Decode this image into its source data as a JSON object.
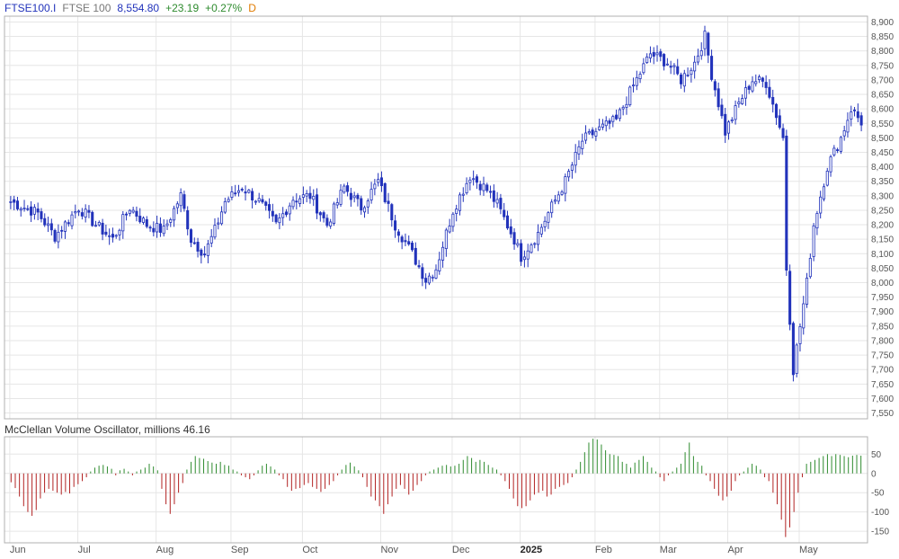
{
  "header": {
    "symbol": "FTSE100.I",
    "name": "FTSE 100",
    "last": "8,554.80",
    "change": "+23.19",
    "change_pct": "+0.27%",
    "interval": "D"
  },
  "oscillator": {
    "title": "McClellan Volume Oscillator, millions",
    "value": "46.16"
  },
  "colors": {
    "candle": "#2233bb",
    "positive": "#2e8b2e",
    "negative": "#b22222",
    "grid": "#e6e6e6",
    "axis": "#b0b0b0"
  },
  "chart_data": [
    {
      "type": "candlestick",
      "ylim": [
        7530,
        8920
      ],
      "yticks": [
        "8,900",
        "8,850",
        "8,800",
        "8,750",
        "8,700",
        "8,650",
        "8,600",
        "8,550",
        "8,500",
        "8,450",
        "8,400",
        "8,350",
        "8,300",
        "8,250",
        "8,200",
        "8,150",
        "8,100",
        "8,050",
        "8,000",
        "7,950",
        "7,900",
        "7,850",
        "7,800",
        "7,750",
        "7,700",
        "7,650",
        "7,600",
        "7,550"
      ],
      "ytick_values": [
        8900,
        8850,
        8800,
        8750,
        8700,
        8650,
        8600,
        8550,
        8500,
        8450,
        8400,
        8350,
        8300,
        8250,
        8200,
        8150,
        8100,
        8050,
        8000,
        7950,
        7900,
        7850,
        7800,
        7750,
        7700,
        7650,
        7600,
        7550
      ],
      "close_anchors": [
        [
          0,
          8280
        ],
        [
          8,
          8240
        ],
        [
          13,
          8160
        ],
        [
          20,
          8260
        ],
        [
          25,
          8200
        ],
        [
          30,
          8150
        ],
        [
          35,
          8260
        ],
        [
          40,
          8200
        ],
        [
          45,
          8180
        ],
        [
          50,
          8300
        ],
        [
          53,
          8150
        ],
        [
          57,
          8100
        ],
        [
          60,
          8180
        ],
        [
          63,
          8280
        ],
        [
          68,
          8330
        ],
        [
          73,
          8280
        ],
        [
          78,
          8200
        ],
        [
          83,
          8290
        ],
        [
          88,
          8300
        ],
        [
          93,
          8200
        ],
        [
          98,
          8330
        ],
        [
          103,
          8260
        ],
        [
          108,
          8350
        ],
        [
          113,
          8200
        ],
        [
          118,
          8100
        ],
        [
          122,
          8010
        ],
        [
          125,
          8050
        ],
        [
          130,
          8250
        ],
        [
          135,
          8370
        ],
        [
          140,
          8320
        ],
        [
          143,
          8270
        ],
        [
          148,
          8150
        ],
        [
          150,
          8090
        ],
        [
          155,
          8170
        ],
        [
          158,
          8240
        ],
        [
          163,
          8350
        ],
        [
          168,
          8490
        ],
        [
          173,
          8530
        ],
        [
          178,
          8560
        ],
        [
          183,
          8680
        ],
        [
          188,
          8790
        ],
        [
          193,
          8760
        ],
        [
          197,
          8700
        ],
        [
          201,
          8760
        ],
        [
          204,
          8850
        ],
        [
          206,
          8720
        ],
        [
          210,
          8520
        ],
        [
          214,
          8620
        ],
        [
          218,
          8700
        ],
        [
          222,
          8690
        ],
        [
          225,
          8580
        ],
        [
          227,
          8500
        ],
        [
          228,
          8050
        ],
        [
          230,
          7700
        ],
        [
          232,
          7850
        ],
        [
          234,
          8000
        ],
        [
          236,
          8200
        ],
        [
          240,
          8400
        ],
        [
          244,
          8500
        ],
        [
          247,
          8600
        ],
        [
          250,
          8555
        ]
      ],
      "n_days": 251
    },
    {
      "type": "bar",
      "ylim": [
        -180,
        95
      ],
      "yticks": [
        "50",
        "0",
        "-50",
        "-100",
        "-150"
      ],
      "ytick_values": [
        50,
        0,
        -50,
        -100,
        -150
      ],
      "values": [
        -23,
        -38,
        -60,
        -85,
        -100,
        -110,
        -95,
        -65,
        -50,
        -40,
        -45,
        -50,
        -55,
        -48,
        -52,
        -35,
        -28,
        -20,
        -10,
        5,
        15,
        20,
        22,
        18,
        12,
        -5,
        8,
        12,
        5,
        -5,
        5,
        10,
        15,
        25,
        18,
        8,
        -40,
        -80,
        -105,
        -80,
        -50,
        -25,
        10,
        30,
        45,
        40,
        38,
        32,
        28,
        25,
        30,
        22,
        20,
        10,
        5,
        -5,
        -10,
        -15,
        -5,
        8,
        20,
        25,
        18,
        10,
        -5,
        -15,
        -35,
        -45,
        -40,
        -38,
        -30,
        -25,
        -35,
        -40,
        -48,
        -40,
        -30,
        -20,
        -5,
        10,
        22,
        28,
        18,
        8,
        -10,
        -35,
        -60,
        -70,
        -85,
        -105,
        -80,
        -60,
        -40,
        -30,
        -40,
        -55,
        -45,
        -30,
        -20,
        -5,
        5,
        10,
        15,
        20,
        22,
        18,
        20,
        25,
        35,
        45,
        40,
        30,
        35,
        30,
        22,
        15,
        10,
        -5,
        -20,
        -40,
        -65,
        -85,
        -90,
        -85,
        -70,
        -55,
        -50,
        -45,
        -60,
        -55,
        -40,
        -35,
        -30,
        -25,
        -10,
        10,
        30,
        55,
        80,
        90,
        88,
        75,
        60,
        50,
        48,
        45,
        30,
        25,
        15,
        28,
        35,
        45,
        30,
        15,
        5,
        -10,
        -20,
        -5,
        5,
        15,
        25,
        55,
        80,
        45,
        30,
        20,
        -5,
        -20,
        -40,
        -58,
        -70,
        -60,
        -45,
        -20,
        -5,
        5,
        15,
        25,
        20,
        10,
        -10,
        -20,
        -50,
        -80,
        -120,
        -165,
        -140,
        -100,
        -50,
        -10,
        25,
        30,
        35,
        40,
        45,
        50,
        45,
        50,
        48,
        45,
        42,
        46,
        48,
        46
      ]
    }
  ],
  "x_axis": [
    {
      "label": "Jun",
      "bold": false
    },
    {
      "label": "Jul",
      "bold": false
    },
    {
      "label": "Aug",
      "bold": false
    },
    {
      "label": "Sep",
      "bold": false
    },
    {
      "label": "Oct",
      "bold": false
    },
    {
      "label": "Nov",
      "bold": false
    },
    {
      "label": "Dec",
      "bold": false
    },
    {
      "label": "2025",
      "bold": true
    },
    {
      "label": "Feb",
      "bold": false
    },
    {
      "label": "Mar",
      "bold": false
    },
    {
      "label": "Apr",
      "bold": false
    },
    {
      "label": "May",
      "bold": false
    }
  ]
}
